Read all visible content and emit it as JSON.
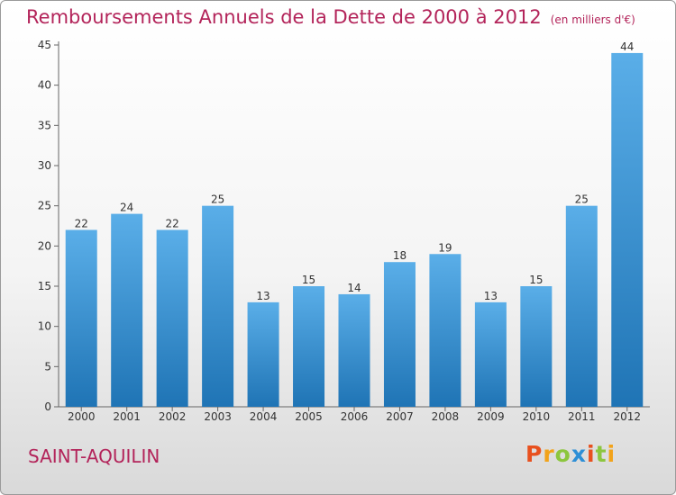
{
  "header": {
    "title": "Remboursements Annuels de la Dette de 2000 à 2012",
    "subtitle": "(en milliers d'€)"
  },
  "footer": {
    "commune": "SAINT-AQUILIN",
    "logo": "Proxiti"
  },
  "colors": {
    "title": "#b3245a",
    "bar_light": "#5aaee8",
    "bar_dark": "#1f74b5",
    "logo_letters": [
      "#e8501e",
      "#f2a31a",
      "#8cc63e",
      "#2e8fd6",
      "#e8501e",
      "#8cc63e",
      "#f2a31a"
    ]
  },
  "chart_data": {
    "type": "bar",
    "categories": [
      "2000",
      "2001",
      "2002",
      "2003",
      "2004",
      "2005",
      "2006",
      "2007",
      "2008",
      "2009",
      "2010",
      "2011",
      "2012"
    ],
    "values": [
      22,
      24,
      22,
      25,
      13,
      15,
      14,
      18,
      19,
      13,
      15,
      25,
      44
    ],
    "title": "Remboursements Annuels de la Dette de 2000 à 2012",
    "xlabel": "",
    "ylabel": "",
    "ylim": [
      0,
      45
    ],
    "yticks": [
      0,
      5,
      10,
      15,
      20,
      25,
      30,
      35,
      40,
      45
    ],
    "grid": false,
    "legend": "none"
  }
}
